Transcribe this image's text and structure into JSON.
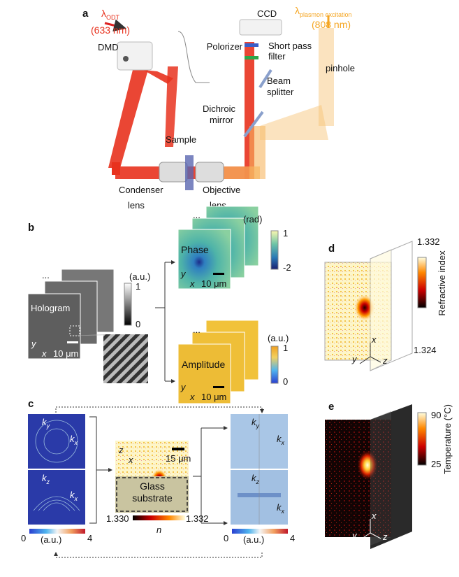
{
  "panel_a": {
    "label": "a",
    "odt": {
      "symbol": "λ",
      "sub": "ODT",
      "wavelength": "(633 nm)"
    },
    "plasmon": {
      "symbol": "λ",
      "sub": "plasmon excitation",
      "wavelength": "(808 nm)"
    },
    "dmd": "DMD",
    "ccd": "CCD",
    "polarizer": "Polorizer",
    "short_pass_filter": [
      "Short pass",
      "filter"
    ],
    "pinhole": "pinhole",
    "beam_splitter": [
      "Beam",
      "splitter"
    ],
    "dichroic_mirror": [
      "Dichroic",
      "mirror"
    ],
    "sample": "Sample",
    "condenser_lens": [
      "Condenser",
      "lens"
    ],
    "objective_lens": [
      "Objective",
      "lens"
    ]
  },
  "panel_b": {
    "label": "b",
    "hologram": {
      "title": "Hologram",
      "stack_marker": "...",
      "unit": "(a.u.)",
      "cbar_max": "1",
      "cbar_min": "0",
      "axis_y": "y",
      "axis_x": "x",
      "scale_bar": "10 μm"
    },
    "phase": {
      "title": "Phase",
      "stack_marker": "...",
      "unit": "(rad)",
      "cbar_max": "1",
      "cbar_min": "-2",
      "axis_y": "y",
      "axis_x": "x",
      "scale_bar": "10 μm"
    },
    "amplitude": {
      "title": "Amplitude",
      "stack_marker": "...",
      "unit": "(a.u.)",
      "cbar_max": "1",
      "cbar_min": "0",
      "axis_y": "y",
      "axis_x": "x",
      "scale_bar": "10 μm"
    }
  },
  "panel_c": {
    "label": "c",
    "left": {
      "top": {
        "k1": "k",
        "k1_sub": "y",
        "k2": "k",
        "k2_sub": "x"
      },
      "bottom": {
        "k1": "k",
        "k1_sub": "z",
        "k2": "k",
        "k2_sub": "x"
      },
      "cbar_min": "0",
      "unit": "(a.u.)",
      "cbar_max": "4"
    },
    "middle": {
      "axis_z": "z",
      "axis_x": "x",
      "scale_bar": "15 μm",
      "substrate": [
        "Glass",
        "substrate"
      ],
      "cbar_min": "1.330",
      "cbar_max": "1.332",
      "cbar_label": "n"
    },
    "right": {
      "top": {
        "k1": "k",
        "k1_sub": "y",
        "k2": "k",
        "k2_sub": "x"
      },
      "bottom": {
        "k1": "k",
        "k1_sub": "z",
        "k2": "k",
        "k2_sub": "x"
      },
      "cbar_min": "0",
      "unit": "(a.u.)",
      "cbar_max": "4"
    }
  },
  "panel_d": {
    "label": "d",
    "cbar_max": "1.332",
    "cbar_label": "Refractive index",
    "cbar_min": "1.324",
    "axis_x": "x",
    "axis_y": "y",
    "axis_z": "z"
  },
  "panel_e": {
    "label": "e",
    "cbar_max": "90",
    "cbar_label": "Temperature (°C)",
    "cbar_min": "25",
    "axis_x": "x",
    "axis_y": "y",
    "axis_z": "z"
  }
}
